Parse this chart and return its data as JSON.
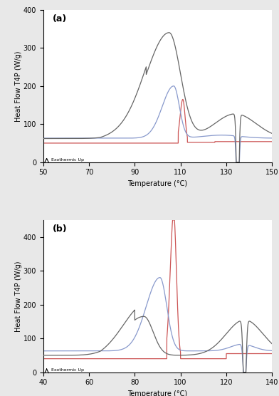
{
  "panel_a": {
    "label": "(a)",
    "xlabel": "Temperature (°C)",
    "ylabel": "Heat Flow T4P (W/g)",
    "xlim": [
      50,
      150
    ],
    "ylim": [
      0,
      400
    ],
    "yticks": [
      0,
      100,
      200,
      300,
      400
    ],
    "xticks": [
      50,
      70,
      90,
      110,
      130,
      150
    ],
    "annotation": "Exothermic Up",
    "black_baseline": 62.0,
    "blue_baseline": 63.0,
    "red_baseline": 50.0
  },
  "panel_b": {
    "label": "(b)",
    "xlabel": "Temperature (°C)",
    "ylabel": "Heat Flow T4P (W/g)",
    "xlim": [
      40,
      140
    ],
    "ylim": [
      0,
      450
    ],
    "yticks": [
      0,
      100,
      200,
      300,
      400
    ],
    "xticks": [
      40,
      60,
      80,
      100,
      120,
      140
    ],
    "annotation": "Exothermic Up",
    "black_baseline": 50.0,
    "blue_baseline": 63.0,
    "red_baseline": 40.0
  }
}
